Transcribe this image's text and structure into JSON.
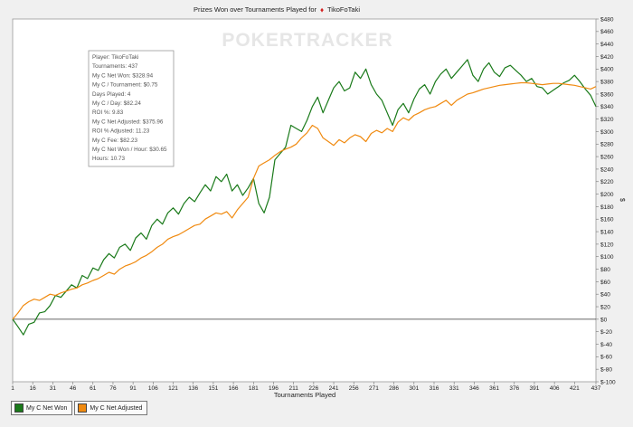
{
  "chart_data": {
    "type": "line",
    "title": "Prizes Won over Tournaments Played for",
    "player_name": "TikoFoTaki",
    "brand_watermark": "POKERTRACKER",
    "xlabel": "Tournaments Played",
    "ylabel": "$",
    "xlim": [
      1,
      437
    ],
    "ylim": [
      -100,
      480
    ],
    "x_ticks": [
      1,
      16,
      31,
      46,
      61,
      76,
      91,
      106,
      121,
      136,
      151,
      166,
      181,
      196,
      211,
      226,
      241,
      256,
      271,
      286,
      301,
      316,
      331,
      346,
      361,
      376,
      391,
      406,
      421,
      437
    ],
    "y_ticks": [
      {
        "v": 480,
        "label": "$480"
      },
      {
        "v": 460,
        "label": "$460"
      },
      {
        "v": 440,
        "label": "$440"
      },
      {
        "v": 420,
        "label": "$420"
      },
      {
        "v": 400,
        "label": "$400"
      },
      {
        "v": 380,
        "label": "$380"
      },
      {
        "v": 360,
        "label": "$360"
      },
      {
        "v": 340,
        "label": "$340"
      },
      {
        "v": 320,
        "label": "$320"
      },
      {
        "v": 300,
        "label": "$300"
      },
      {
        "v": 280,
        "label": "$280"
      },
      {
        "v": 260,
        "label": "$260"
      },
      {
        "v": 240,
        "label": "$240"
      },
      {
        "v": 220,
        "label": "$220"
      },
      {
        "v": 200,
        "label": "$200"
      },
      {
        "v": 180,
        "label": "$180"
      },
      {
        "v": 160,
        "label": "$160"
      },
      {
        "v": 140,
        "label": "$140"
      },
      {
        "v": 120,
        "label": "$120"
      },
      {
        "v": 100,
        "label": "$100"
      },
      {
        "v": 80,
        "label": "$80"
      },
      {
        "v": 60,
        "label": "$60"
      },
      {
        "v": 40,
        "label": "$40"
      },
      {
        "v": 20,
        "label": "$20"
      },
      {
        "v": 0,
        "label": "$0"
      },
      {
        "v": -20,
        "label": "$-20"
      },
      {
        "v": -40,
        "label": "$-40"
      },
      {
        "v": -60,
        "label": "$-60"
      },
      {
        "v": -80,
        "label": "$-80"
      },
      {
        "v": -100,
        "label": "$-100"
      }
    ],
    "grid": false,
    "legend_position": "bottom-left",
    "series": [
      {
        "name": "My C Net Won",
        "color": "#1a7a1a",
        "x": [
          1,
          5,
          9,
          13,
          17,
          21,
          25,
          29,
          33,
          37,
          41,
          45,
          49,
          53,
          57,
          61,
          65,
          69,
          73,
          77,
          81,
          85,
          89,
          93,
          97,
          101,
          105,
          109,
          113,
          117,
          121,
          125,
          129,
          133,
          137,
          141,
          145,
          149,
          153,
          157,
          161,
          165,
          169,
          173,
          177,
          181,
          185,
          189,
          193,
          197,
          201,
          205,
          209,
          213,
          217,
          221,
          225,
          229,
          233,
          237,
          241,
          245,
          249,
          253,
          257,
          261,
          265,
          269,
          273,
          277,
          281,
          285,
          289,
          293,
          297,
          301,
          305,
          309,
          313,
          317,
          321,
          325,
          329,
          333,
          337,
          341,
          345,
          349,
          353,
          357,
          361,
          365,
          369,
          373,
          377,
          381,
          385,
          389,
          393,
          397,
          401,
          405,
          409,
          413,
          417,
          421,
          425,
          429,
          433,
          437
        ],
        "values": [
          0,
          -12,
          -25,
          -8,
          -5,
          10,
          12,
          22,
          38,
          35,
          45,
          55,
          50,
          70,
          65,
          82,
          78,
          95,
          105,
          98,
          115,
          120,
          110,
          130,
          138,
          128,
          150,
          160,
          152,
          170,
          178,
          168,
          185,
          195,
          188,
          202,
          215,
          205,
          228,
          220,
          232,
          205,
          215,
          198,
          210,
          225,
          185,
          170,
          195,
          255,
          265,
          275,
          310,
          305,
          300,
          318,
          340,
          355,
          330,
          350,
          370,
          380,
          365,
          370,
          395,
          385,
          400,
          375,
          360,
          350,
          330,
          310,
          335,
          345,
          330,
          352,
          368,
          375,
          360,
          380,
          392,
          400,
          385,
          395,
          405,
          415,
          390,
          380,
          400,
          410,
          395,
          388,
          402,
          406,
          398,
          390,
          380,
          385,
          372,
          370,
          360,
          366,
          372,
          378,
          382,
          390,
          380,
          368,
          358,
          340
        ]
      },
      {
        "name": "My C Net Adjusted",
        "color": "#f08a10",
        "x": [
          1,
          5,
          9,
          13,
          17,
          21,
          25,
          29,
          33,
          37,
          41,
          45,
          49,
          53,
          57,
          61,
          65,
          69,
          73,
          77,
          81,
          85,
          89,
          93,
          97,
          101,
          105,
          109,
          113,
          117,
          121,
          125,
          129,
          133,
          137,
          141,
          145,
          149,
          153,
          157,
          161,
          165,
          169,
          173,
          177,
          181,
          185,
          189,
          193,
          197,
          201,
          205,
          209,
          213,
          217,
          221,
          225,
          229,
          233,
          237,
          241,
          245,
          249,
          253,
          257,
          261,
          265,
          269,
          273,
          277,
          281,
          285,
          289,
          293,
          297,
          301,
          305,
          309,
          313,
          317,
          321,
          325,
          329,
          333,
          337,
          341,
          345,
          349,
          353,
          357,
          361,
          365,
          369,
          373,
          377,
          381,
          385,
          389,
          393,
          397,
          401,
          405,
          409,
          413,
          417,
          421,
          425,
          429,
          433,
          437
        ],
        "values": [
          0,
          10,
          22,
          28,
          32,
          30,
          35,
          40,
          38,
          42,
          45,
          48,
          50,
          55,
          58,
          62,
          65,
          70,
          75,
          72,
          80,
          85,
          88,
          92,
          98,
          102,
          108,
          115,
          120,
          128,
          132,
          135,
          140,
          145,
          150,
          152,
          160,
          165,
          170,
          168,
          172,
          162,
          175,
          185,
          195,
          225,
          245,
          250,
          255,
          262,
          268,
          272,
          275,
          280,
          290,
          298,
          310,
          305,
          290,
          284,
          278,
          287,
          282,
          290,
          295,
          292,
          284,
          297,
          302,
          298,
          305,
          300,
          315,
          322,
          318,
          326,
          330,
          335,
          338,
          340,
          345,
          350,
          342,
          350,
          355,
          360,
          362,
          365,
          368,
          370,
          372,
          374,
          375,
          376,
          377,
          378,
          378,
          377,
          376,
          375,
          376,
          377,
          377,
          376,
          375,
          374,
          372,
          370,
          368,
          372
        ]
      }
    ]
  },
  "info_box": {
    "lines": [
      "Player: TikoFoTaki",
      "Tournaments: 437",
      "My C Net Won: $328.94",
      "My C / Tournament: $0.75",
      "Days Played: 4",
      "My C / Day: $82.24",
      "ROI %: 9.83",
      "My C Net Adjusted: $375.96",
      "ROI % Adjusted: 11.23",
      "My C Fee: $82.23",
      "My C Net Won / Hour: $30.65",
      "Hours: 10.73"
    ]
  },
  "legend": {
    "items": [
      {
        "label": "My C Net Won",
        "color": "#1a7a1a"
      },
      {
        "label": "My C Net Adjusted",
        "color": "#f08a10"
      }
    ]
  }
}
